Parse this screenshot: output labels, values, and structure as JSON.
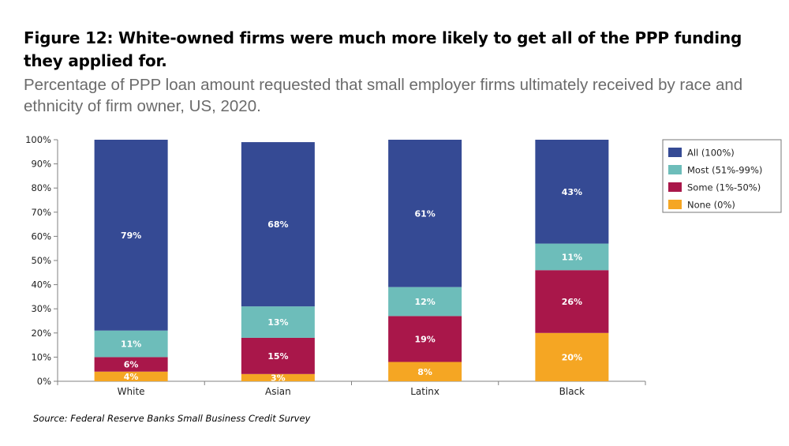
{
  "header": {
    "title": "Figure 12: White-owned firms were much more likely to get all of the PPP funding they applied for.",
    "subtitle": "Percentage of PPP loan amount requested that small employer firms ultimately received by race and ethnicity of firm owner, US, 2020."
  },
  "footer": {
    "source": "Source: Federal Reserve Banks Small Business Credit Survey"
  },
  "chart_data": {
    "type": "bar",
    "stacked": true,
    "categories": [
      "White",
      "Asian",
      "Latinx",
      "Black"
    ],
    "series": [
      {
        "name": "None (0%)",
        "color": "#F5A623",
        "values": [
          4,
          3,
          8,
          20
        ]
      },
      {
        "name": "Some (1%-50%)",
        "color": "#A9174A",
        "values": [
          6,
          15,
          19,
          26
        ]
      },
      {
        "name": "Most (51%-99%)",
        "color": "#6DBDBA",
        "values": [
          11,
          13,
          12,
          11
        ]
      },
      {
        "name": "All (100%)",
        "color": "#354A94",
        "values": [
          79,
          68,
          61,
          43
        ]
      }
    ],
    "legend_order": [
      "All (100%)",
      "Most (51%-99%)",
      "Some (1%-50%)",
      "None (0%)"
    ],
    "legend_position": "right",
    "ylim": [
      0,
      100
    ],
    "yticks": [
      "0%",
      "10%",
      "20%",
      "30%",
      "40%",
      "50%",
      "60%",
      "70%",
      "80%",
      "90%",
      "100%"
    ],
    "value_suffix": "%",
    "grid": false
  }
}
